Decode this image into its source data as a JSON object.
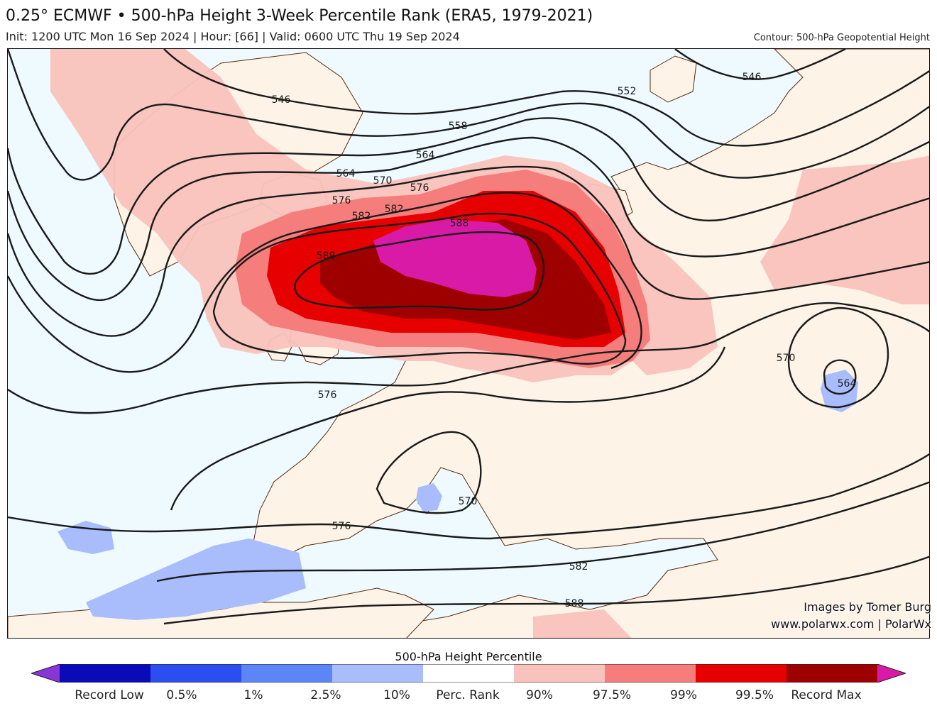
{
  "header": {
    "title": "0.25° ECMWF • 500-hPa Height 3-Week Percentile Rank (ERA5, 1979-2021)",
    "subtitle": "Init: 1200 UTC Mon 16 Sep 2024 | Hour: [66] | Valid: 0600 UTC Thu 19 Sep 2024",
    "contour_note": "Contour: 500-hPa Geopotential Height"
  },
  "map": {
    "contour_labels": [
      "546",
      "546",
      "552",
      "558",
      "564",
      "564",
      "570",
      "576",
      "576",
      "582",
      "582",
      "588",
      "588",
      "570",
      "564",
      "576",
      "570",
      "576",
      "582",
      "588"
    ],
    "colors": {
      "land": "#fdf3e7",
      "ocean": "#eefaff",
      "pct_90": "#f9c2bc",
      "pct_97_5": "#f57d7b",
      "pct_99": "#e60000",
      "pct_99_5": "#9e0000",
      "record_max": "#d91aa6",
      "pct_10": "#a9bdfc",
      "contour": "#1a1a1a",
      "borders": "#5a2a0a"
    }
  },
  "credits": {
    "line1": "Images by Tomer Burg",
    "line2": "www.polarwx.com | PolarWx"
  },
  "colorbar": {
    "title": "500-hPa Height Percentile",
    "labels": [
      "Record Low",
      "0.5%",
      "1%",
      "2.5%",
      "10%",
      "Perc. Rank",
      "90%",
      "97.5%",
      "99%",
      "99.5%",
      "Record Max"
    ],
    "colors": [
      "#8a35d8",
      "#0a0ab8",
      "#2b4ef0",
      "#5c86f5",
      "#a9bdfc",
      "#ffffff",
      "#f9c2bc",
      "#f57d7b",
      "#e60000",
      "#9e0000",
      "#d91aa6"
    ]
  }
}
